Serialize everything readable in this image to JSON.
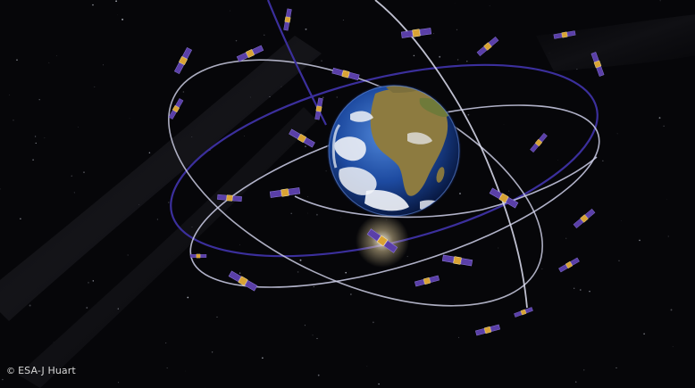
{
  "image": {
    "credit_symbol": "©",
    "credit_text": "ESA-J Huart"
  },
  "colors": {
    "space": "#060609",
    "orbit_plane_a": "#3a2f9a",
    "orbit_plane_b": "#d8d8ee",
    "orbit_plane_c": "#d8d8ee",
    "satellite_panel": "#5a3fa8",
    "satellite_body": "#d9a334",
    "ocean": "#1c4ea6",
    "land": "#8a7a3e",
    "cloud": "#f2f4f8"
  }
}
